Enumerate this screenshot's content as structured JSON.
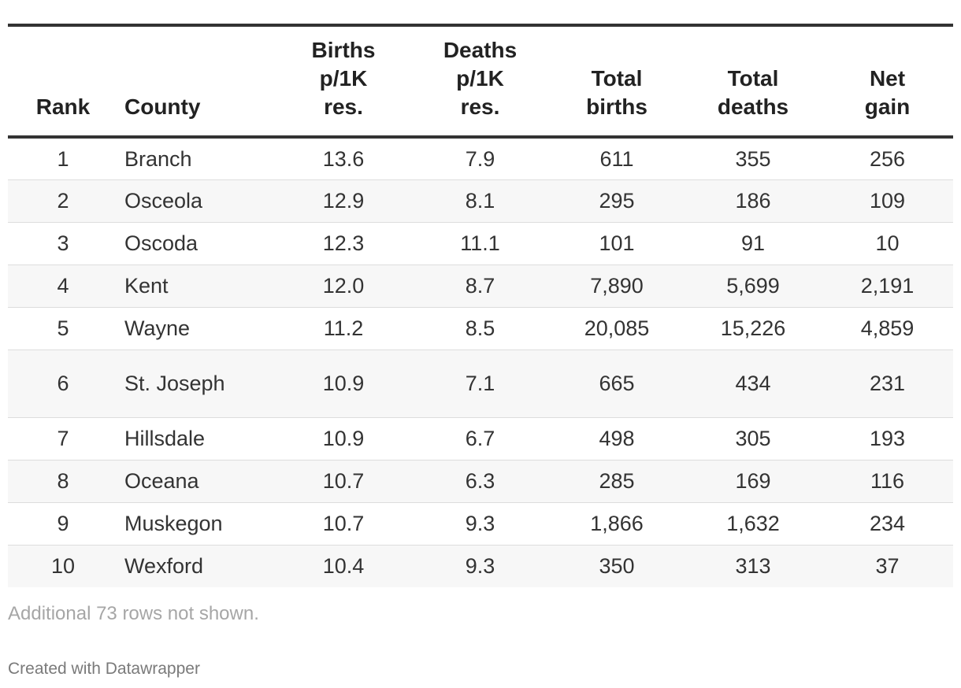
{
  "chart_data": {
    "type": "table",
    "columns": [
      {
        "key": "rank",
        "label": "Rank"
      },
      {
        "key": "county",
        "label": "County"
      },
      {
        "key": "births_rate",
        "label": "Births p/1K res."
      },
      {
        "key": "deaths_rate",
        "label": "Deaths p/1K res."
      },
      {
        "key": "total_births",
        "label": "Total births"
      },
      {
        "key": "total_deaths",
        "label": "Total deaths"
      },
      {
        "key": "net_gain",
        "label": "Net gain"
      }
    ],
    "rows": [
      {
        "rank": "1",
        "county": "Branch",
        "births_rate": "13.6",
        "deaths_rate": "7.9",
        "total_births": "611",
        "total_deaths": "355",
        "net_gain": "256"
      },
      {
        "rank": "2",
        "county": "Osceola",
        "births_rate": "12.9",
        "deaths_rate": "8.1",
        "total_births": "295",
        "total_deaths": "186",
        "net_gain": "109"
      },
      {
        "rank": "3",
        "county": "Oscoda",
        "births_rate": "12.3",
        "deaths_rate": "11.1",
        "total_births": "101",
        "total_deaths": "91",
        "net_gain": "10"
      },
      {
        "rank": "4",
        "county": "Kent",
        "births_rate": "12.0",
        "deaths_rate": "8.7",
        "total_births": "7,890",
        "total_deaths": "5,699",
        "net_gain": "2,191"
      },
      {
        "rank": "5",
        "county": "Wayne",
        "births_rate": "11.2",
        "deaths_rate": "8.5",
        "total_births": "20,085",
        "total_deaths": "15,226",
        "net_gain": "4,859"
      },
      {
        "rank": "6",
        "county": "St. Joseph",
        "births_rate": "10.9",
        "deaths_rate": "7.1",
        "total_births": "665",
        "total_deaths": "434",
        "net_gain": "231"
      },
      {
        "rank": "7",
        "county": "Hillsdale",
        "births_rate": "10.9",
        "deaths_rate": "6.7",
        "total_births": "498",
        "total_deaths": "305",
        "net_gain": "193"
      },
      {
        "rank": "8",
        "county": "Oceana",
        "births_rate": "10.7",
        "deaths_rate": "6.3",
        "total_births": "285",
        "total_deaths": "169",
        "net_gain": "116"
      },
      {
        "rank": "9",
        "county": "Muskegon",
        "births_rate": "10.7",
        "deaths_rate": "9.3",
        "total_births": "1,866",
        "total_deaths": "1,632",
        "net_gain": "234"
      },
      {
        "rank": "10",
        "county": "Wexford",
        "births_rate": "10.4",
        "deaths_rate": "9.3",
        "total_births": "350",
        "total_deaths": "313",
        "net_gain": "37"
      }
    ]
  },
  "notes": "Additional 73 rows not shown.",
  "footer": "Created with Datawrapper"
}
